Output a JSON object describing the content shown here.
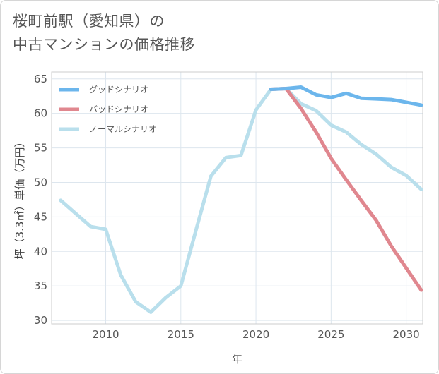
{
  "title": {
    "line1": "桜町前駅（愛知県）の",
    "line2": "中古マンションの価格推移"
  },
  "chart_data": {
    "type": "line",
    "xlabel": "年",
    "ylabel": "坪（3.3㎡）単価（万円）",
    "xlim": [
      2006.4,
      2031.1
    ],
    "ylim": [
      29.5,
      66
    ],
    "xticks": [
      2010,
      2015,
      2020,
      2025,
      2030
    ],
    "yticks": [
      30,
      35,
      40,
      45,
      50,
      55,
      60,
      65
    ],
    "grid": true,
    "legend_position": "top-left",
    "series": [
      {
        "name": "グッドシナリオ",
        "color": "#6cb6ec",
        "x": [
          2021,
          2022,
          2023,
          2024,
          2025,
          2026,
          2027,
          2028,
          2029,
          2030,
          2031
        ],
        "y": [
          63.5,
          63.6,
          63.8,
          62.7,
          62.3,
          62.9,
          62.2,
          62.1,
          62.0,
          61.6,
          61.2
        ]
      },
      {
        "name": "バッドシナリオ",
        "color": "#e0878f",
        "x": [
          2021,
          2022,
          2023,
          2024,
          2025,
          2026,
          2027,
          2028,
          2029,
          2030,
          2031
        ],
        "y": [
          63.5,
          63.6,
          60.7,
          57.3,
          53.5,
          50.4,
          47.4,
          44.5,
          40.8,
          37.6,
          34.4
        ]
      },
      {
        "name": "ノーマルシナリオ",
        "color": "#b9dfec",
        "x": [
          2007,
          2008,
          2009,
          2010,
          2011,
          2012,
          2013,
          2014,
          2015,
          2016,
          2017,
          2018,
          2019,
          2020,
          2021,
          2022,
          2023,
          2024,
          2025,
          2026,
          2027,
          2028,
          2029,
          2030,
          2031
        ],
        "y": [
          47.4,
          45.5,
          43.6,
          43.2,
          36.6,
          32.7,
          31.2,
          33.3,
          35.0,
          43.0,
          50.9,
          53.6,
          53.9,
          60.5,
          63.5,
          63.6,
          61.4,
          60.4,
          58.3,
          57.3,
          55.5,
          54.1,
          52.2,
          51.0,
          49.0
        ]
      }
    ]
  }
}
